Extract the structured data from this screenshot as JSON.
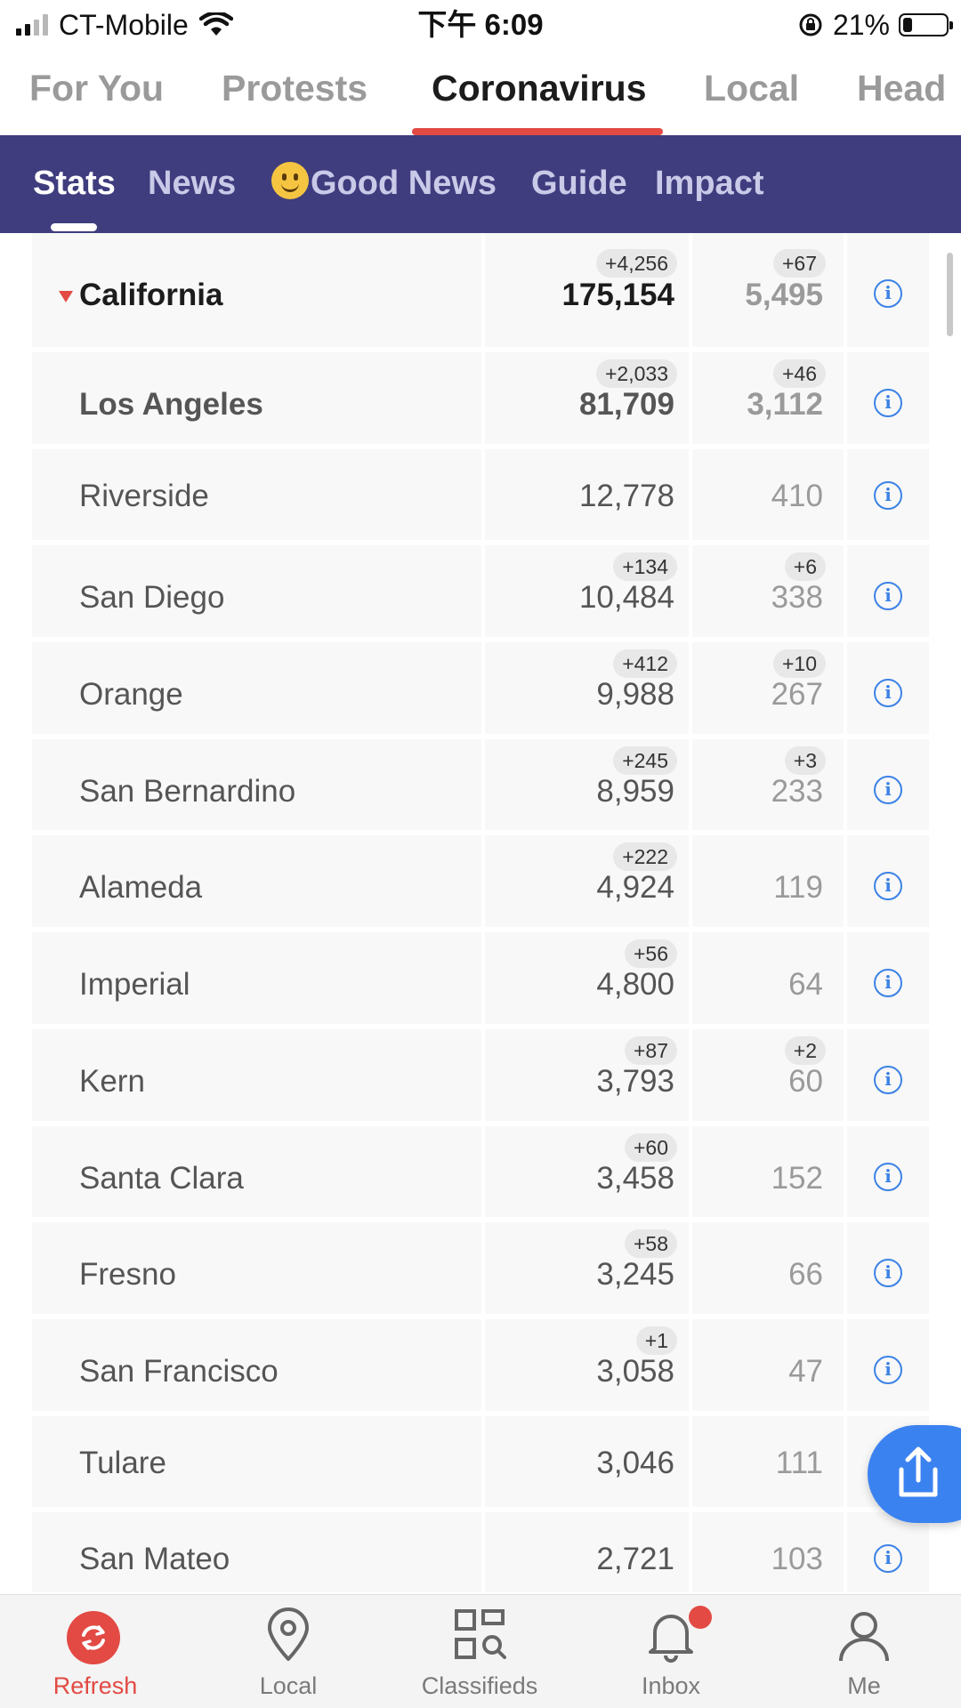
{
  "status_bar": {
    "carrier": "CT-Mobile",
    "time": "下午 6:09",
    "battery": "21%",
    "battery_level": 0.21
  },
  "top_tabs": [
    "For You",
    "Protests",
    "Coronavirus",
    "Local",
    "Head"
  ],
  "top_tab_active": "Coronavirus",
  "sub_tabs": [
    "Stats",
    "News",
    "Good News",
    "Guide",
    "Impact"
  ],
  "sub_tab_active": "Stats",
  "rows": [
    {
      "name": "California",
      "cases": "175,154",
      "cases_delta": "+4,256",
      "deaths": "5,495",
      "deaths_delta": "+67"
    },
    {
      "name": "Los Angeles",
      "cases": "81,709",
      "cases_delta": "+2,033",
      "deaths": "3,112",
      "deaths_delta": "+46"
    },
    {
      "name": "Riverside",
      "cases": "12,778",
      "cases_delta": "",
      "deaths": "410",
      "deaths_delta": ""
    },
    {
      "name": "San Diego",
      "cases": "10,484",
      "cases_delta": "+134",
      "deaths": "338",
      "deaths_delta": "+6"
    },
    {
      "name": "Orange",
      "cases": "9,988",
      "cases_delta": "+412",
      "deaths": "267",
      "deaths_delta": "+10"
    },
    {
      "name": "San Bernardino",
      "cases": "8,959",
      "cases_delta": "+245",
      "deaths": "233",
      "deaths_delta": "+3"
    },
    {
      "name": "Alameda",
      "cases": "4,924",
      "cases_delta": "+222",
      "deaths": "119",
      "deaths_delta": ""
    },
    {
      "name": "Imperial",
      "cases": "4,800",
      "cases_delta": "+56",
      "deaths": "64",
      "deaths_delta": ""
    },
    {
      "name": "Kern",
      "cases": "3,793",
      "cases_delta": "+87",
      "deaths": "60",
      "deaths_delta": "+2"
    },
    {
      "name": "Santa Clara",
      "cases": "3,458",
      "cases_delta": "+60",
      "deaths": "152",
      "deaths_delta": ""
    },
    {
      "name": "Fresno",
      "cases": "3,245",
      "cases_delta": "+58",
      "deaths": "66",
      "deaths_delta": ""
    },
    {
      "name": "San Francisco",
      "cases": "3,058",
      "cases_delta": "+1",
      "deaths": "47",
      "deaths_delta": ""
    },
    {
      "name": "Tulare",
      "cases": "3,046",
      "cases_delta": "",
      "deaths": "111",
      "deaths_delta": ""
    },
    {
      "name": "San Mateo",
      "cases": "2,721",
      "cases_delta": "",
      "deaths": "103",
      "deaths_delta": ""
    }
  ],
  "bottom_nav": [
    "Refresh",
    "Local",
    "Classifieds",
    "Inbox",
    "Me"
  ],
  "bottom_nav_active": "Refresh",
  "colors": {
    "accent": "#e24a43",
    "subnav_bg": "#3f3d7e",
    "link": "#3b82e6"
  }
}
